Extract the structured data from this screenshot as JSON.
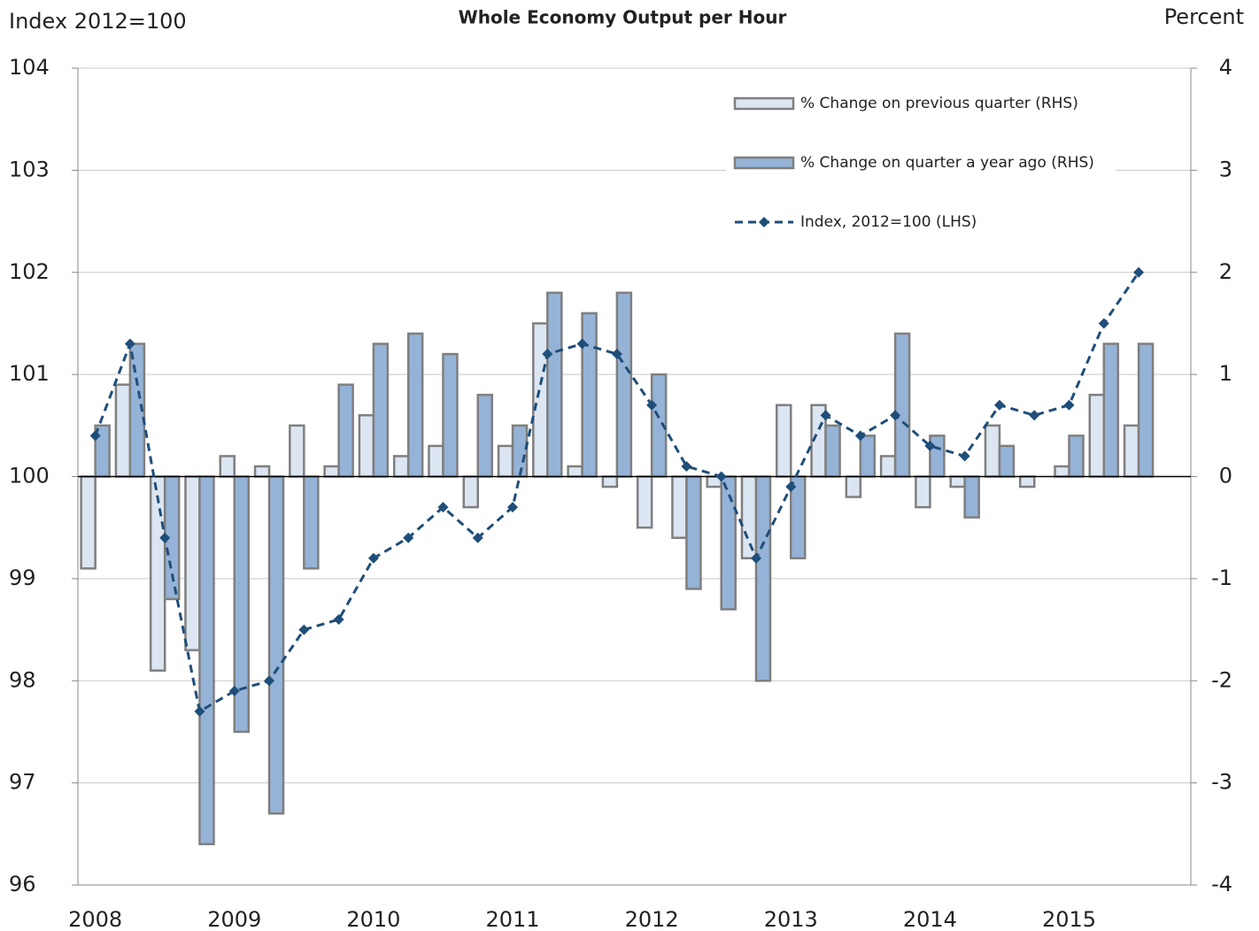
{
  "chart_data": {
    "type": "combo",
    "title": "Whole Economy Output per Hour",
    "y_label": "Index 2012=100",
    "y2_label": "Percent",
    "categories": [
      "2008",
      null,
      null,
      null,
      "2009",
      null,
      null,
      null,
      "2010",
      null,
      null,
      null,
      "2011",
      null,
      null,
      null,
      "2012",
      null,
      null,
      null,
      "2013",
      null,
      null,
      null,
      "2014",
      null,
      null,
      null,
      "2015",
      null,
      null,
      null
    ],
    "series": [
      {
        "name": "% Change on previous quarter (RHS)",
        "type": "bar",
        "axis": "y2",
        "color": "#dce6f2",
        "values": [
          -0.9,
          0.9,
          -1.9,
          -1.7,
          0.2,
          0.1,
          0.5,
          0.1,
          0.6,
          0.2,
          0.3,
          -0.3,
          0.3,
          1.5,
          0.1,
          -0.1,
          -0.5,
          -0.6,
          -0.1,
          -0.8,
          0.7,
          0.7,
          -0.2,
          0.2,
          -0.3,
          -0.1,
          0.5,
          -0.1,
          0.1,
          0.8,
          0.5,
          null
        ]
      },
      {
        "name": "% Change on quarter a year ago (RHS)",
        "type": "bar",
        "axis": "y2",
        "color": "#95b3d7",
        "values": [
          0.5,
          1.3,
          -1.2,
          -3.6,
          -2.5,
          -3.3,
          -0.9,
          0.9,
          1.3,
          1.4,
          1.2,
          0.8,
          0.5,
          1.8,
          1.6,
          1.8,
          1.0,
          -1.1,
          -1.3,
          -2.0,
          -0.8,
          0.5,
          0.4,
          1.4,
          0.4,
          -0.4,
          0.3,
          0.0,
          0.4,
          1.3,
          1.3,
          null
        ]
      },
      {
        "name": "Index, 2012=100 (LHS)",
        "type": "line",
        "axis": "y",
        "color": "#1f4e79",
        "values": [
          100.4,
          101.3,
          99.4,
          97.7,
          97.9,
          98.0,
          98.5,
          98.6,
          99.2,
          99.4,
          99.7,
          99.4,
          99.7,
          101.2,
          101.3,
          101.2,
          100.7,
          100.1,
          100.0,
          99.2,
          99.9,
          100.6,
          100.4,
          100.6,
          100.3,
          100.2,
          100.7,
          100.6,
          100.7,
          101.5,
          102.0,
          null
        ]
      }
    ],
    "ylim": [
      96,
      104
    ],
    "yticks": [
      96,
      97,
      98,
      99,
      100,
      101,
      102,
      103,
      104
    ],
    "y2lim": [
      -4,
      4
    ],
    "y2ticks": [
      -4,
      -3,
      -2,
      -1,
      0,
      1,
      2,
      3,
      4
    ],
    "grid": true
  }
}
